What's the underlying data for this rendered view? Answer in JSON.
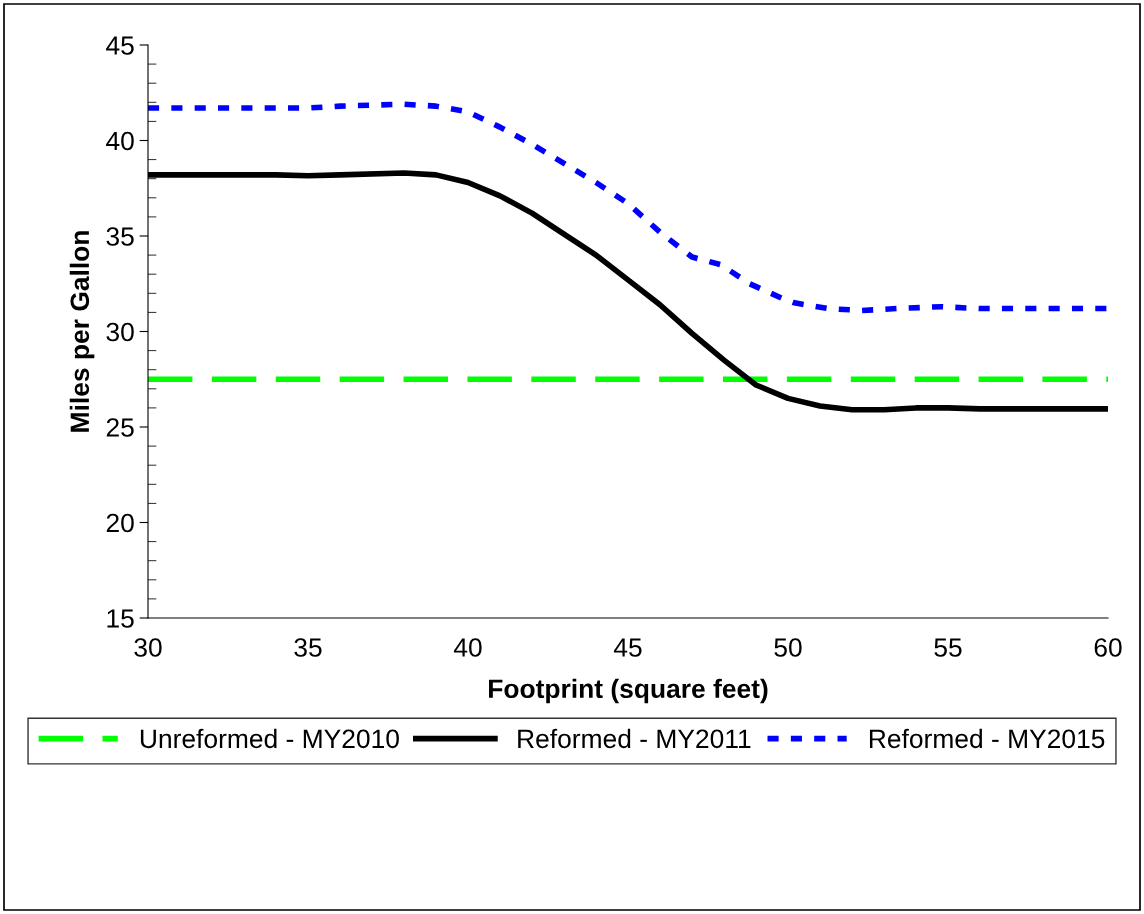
{
  "chart_data": {
    "type": "line",
    "xlabel": "Footprint (square feet)",
    "ylabel": "Miles per Gallon",
    "xlim": [
      30,
      60
    ],
    "xticks": [
      30,
      35,
      40,
      45,
      50,
      55,
      60
    ],
    "ylim": [
      15,
      45
    ],
    "yticks": [
      15,
      20,
      25,
      30,
      35,
      40,
      45
    ],
    "grid": false,
    "legend": "bottom",
    "marker": "none",
    "series": [
      {
        "name": "Unreformed - MY2010",
        "color": "#00ff00",
        "line_style": "dashed",
        "x": [
          30,
          60
        ],
        "values": [
          27.5,
          27.5
        ]
      },
      {
        "name": "Reformed - MY2011",
        "color": "#000000",
        "line_style": "solid",
        "x": [
          30,
          32,
          34,
          35,
          36,
          38,
          39,
          40,
          41,
          42,
          43,
          44,
          45,
          46,
          47,
          48,
          49,
          50,
          51,
          52,
          53,
          54,
          55,
          56,
          58,
          60
        ],
        "values": [
          38.2,
          38.2,
          38.2,
          38.15,
          38.2,
          38.3,
          38.2,
          37.8,
          37.1,
          36.2,
          35.1,
          34.0,
          32.7,
          31.4,
          29.9,
          28.5,
          27.2,
          26.5,
          26.1,
          25.9,
          25.9,
          26.0,
          26.0,
          25.95,
          25.95,
          25.95
        ]
      },
      {
        "name": "Reformed - MY2015",
        "color": "#0000ff",
        "line_style": "dotted",
        "x": [
          30,
          32,
          34,
          35,
          36,
          37,
          38,
          39,
          40,
          41,
          42,
          43,
          44,
          45,
          46,
          47,
          47.9,
          48.8,
          49.8,
          50.2,
          51.25,
          52.3,
          53.4,
          54.8,
          56,
          58,
          60
        ],
        "values": [
          41.7,
          41.7,
          41.7,
          41.7,
          41.8,
          41.85,
          41.9,
          41.8,
          41.5,
          40.7,
          39.8,
          38.8,
          37.8,
          36.7,
          35.2,
          33.9,
          33.5,
          32.5,
          31.75,
          31.5,
          31.2,
          31.1,
          31.2,
          31.3,
          31.2,
          31.2,
          31.2
        ]
      }
    ]
  }
}
